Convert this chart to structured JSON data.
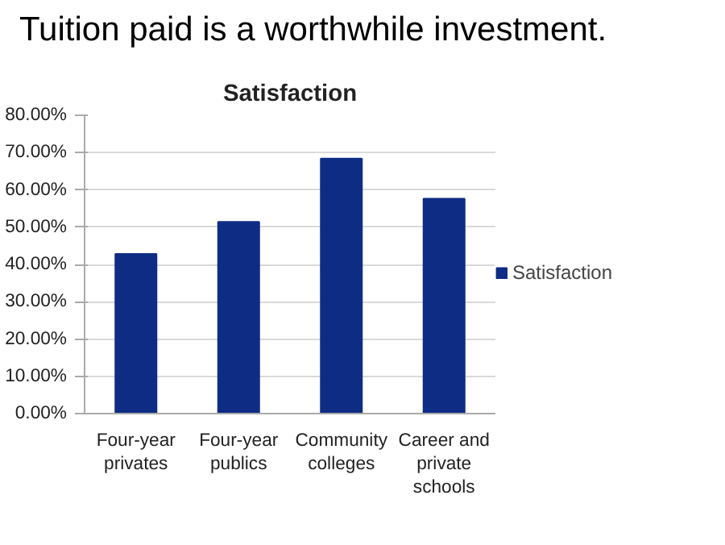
{
  "chart_data": {
    "type": "bar",
    "title": "Tuition paid is a worthwhile investment.",
    "subtitle": "Satisfaction",
    "categories": [
      "Four-year privates",
      "Four-year publics",
      "Community colleges",
      "Career and private schools"
    ],
    "series": [
      {
        "name": "Satisfaction",
        "color": "#0e2c84",
        "values": [
          42.8,
          51.4,
          68.4,
          57.6
        ]
      }
    ],
    "ylim": [
      0,
      80
    ],
    "yticks": [
      {
        "value": 0,
        "label": "0.00%"
      },
      {
        "value": 10,
        "label": "10.00%"
      },
      {
        "value": 20,
        "label": "20.00%"
      },
      {
        "value": 30,
        "label": "30.00%"
      },
      {
        "value": 40,
        "label": "40.00%"
      },
      {
        "value": 50,
        "label": "50.00%"
      },
      {
        "value": 60,
        "label": "60.00%"
      },
      {
        "value": 70,
        "label": "70.00%"
      },
      {
        "value": 80,
        "label": "80.00%"
      }
    ],
    "grid": "y",
    "legend": "right"
  }
}
